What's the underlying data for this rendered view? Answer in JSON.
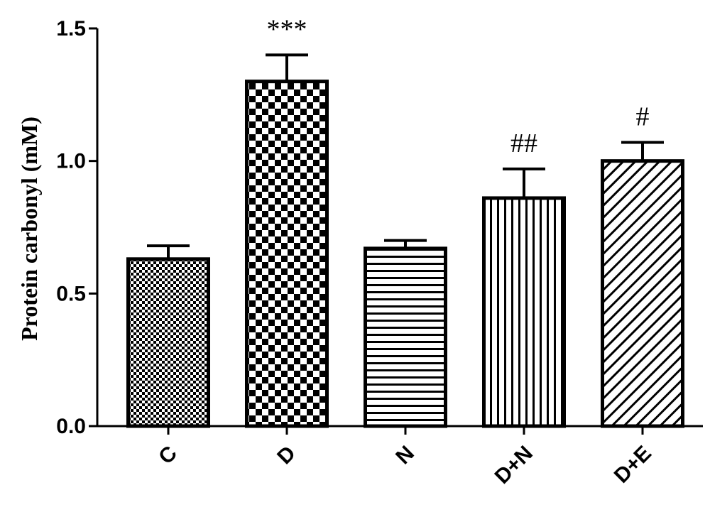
{
  "chart_data": {
    "type": "bar",
    "ylabel": "Protein carbonyl (mM)",
    "ylim": [
      0,
      1.5
    ],
    "yticks": [
      "0.0",
      "0.5",
      "1.0",
      "1.5"
    ],
    "categories": [
      "C",
      "D",
      "N",
      "D+N",
      "D+E"
    ],
    "values": [
      0.63,
      1.3,
      0.67,
      0.86,
      1.0
    ],
    "errors": [
      0.05,
      0.1,
      0.03,
      0.11,
      0.07
    ],
    "annotations": [
      "",
      "***",
      "",
      "##",
      "#"
    ],
    "patterns": [
      "fine-check",
      "checker",
      "horizontal",
      "vertical",
      "diagonal"
    ],
    "grid": false
  }
}
